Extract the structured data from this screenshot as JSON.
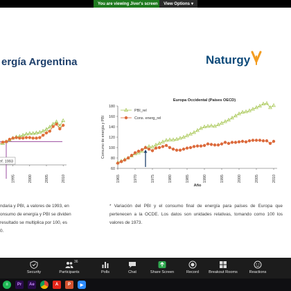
{
  "banner": {
    "message": "You are viewing Jiver's screen",
    "options_label": "View Options",
    "options_caret": "▾"
  },
  "slide": {
    "title": "ergía Argentina",
    "logo_text": "Naturgy",
    "left_chart": {
      "ref_label": "Ref. 1993",
      "x_ticks": [
        "1990",
        "1995",
        "2000",
        "2005",
        "2010"
      ]
    },
    "right_chart": {
      "title": "Europa Occidental (Países OECD)",
      "ylabel": "Consumo de energía y PBI",
      "xlabel": "Año",
      "legend": [
        "PBI_rel",
        "Cons. energ_rel"
      ]
    },
    "caption_left": [
      "ndaria y PBI, a valores de 1993, en",
      "onsumo de energía y PBI se dividen",
      "resultado se multiplica por 100, es",
      "0."
    ],
    "caption_right": "* Variación del PBI y el consumo final de energía para países de Europa que pertenecen a la OCDE. Los datos son unidades relativas, tomando como 100 los valores de 1973."
  },
  "chart_data": [
    {
      "type": "line",
      "title": "",
      "xlabel": "",
      "ylabel": "",
      "x": [
        1987,
        1988,
        1989,
        1990,
        1991,
        1992,
        1993,
        1994,
        1995,
        1996,
        1997,
        1998,
        1999,
        2000,
        2001,
        2002,
        2003,
        2004,
        2005,
        2006,
        2007,
        2008,
        2009,
        2010
      ],
      "xlim": [
        1987,
        2011
      ],
      "ylim": [
        60,
        160
      ],
      "series": [
        {
          "name": "",
          "color": "#99c24d",
          "marker": "triangle",
          "values": [
            88,
            90,
            92,
            93,
            95,
            97,
            100,
            103,
            106,
            108,
            109,
            111,
            113,
            114,
            114,
            115,
            116,
            118,
            121,
            125,
            130,
            134,
            127,
            136
          ]
        },
        {
          "name": "",
          "color": "#e0703a",
          "marker": "circle",
          "values": [
            90,
            92,
            94,
            96,
            97,
            99,
            100,
            104,
            106,
            107,
            106,
            106,
            107,
            107,
            106,
            106,
            107,
            111,
            115,
            118,
            126,
            130,
            122,
            128
          ]
        }
      ],
      "annotations": [
        {
          "text": "Ref. 1993",
          "x": 1993
        }
      ]
    },
    {
      "type": "line",
      "title": "Europa Occidental (Países OECD)",
      "xlabel": "Año",
      "ylabel": "Consumo de energía y PBI",
      "x": [
        1965,
        1966,
        1967,
        1968,
        1969,
        1970,
        1971,
        1972,
        1973,
        1974,
        1975,
        1976,
        1977,
        1978,
        1979,
        1980,
        1981,
        1982,
        1983,
        1984,
        1985,
        1986,
        1987,
        1988,
        1989,
        1990,
        1991,
        1992,
        1993,
        1994,
        1995,
        1996,
        1997,
        1998,
        1999,
        2000,
        2001,
        2002,
        2003,
        2004,
        2005,
        2006,
        2007,
        2008,
        2009,
        2010
      ],
      "xlim": [
        1965,
        2011
      ],
      "ylim": [
        60,
        180
      ],
      "xticks": [
        1965,
        1970,
        1975,
        1980,
        1985,
        1990,
        1995,
        2000,
        2005,
        2010
      ],
      "yticks": [
        60,
        80,
        100,
        120,
        140,
        160,
        180
      ],
      "grid": false,
      "legend_position": "top-left",
      "series": [
        {
          "name": "PBI_rel",
          "color": "#a9c857",
          "marker": "triangle",
          "values": [
            71,
            74,
            77,
            80,
            84,
            88,
            90,
            93,
            100,
            102,
            101,
            105,
            108,
            111,
            114,
            115,
            115,
            116,
            118,
            120,
            123,
            126,
            129,
            133,
            137,
            140,
            141,
            142,
            141,
            144,
            147,
            150,
            153,
            157,
            161,
            165,
            168,
            169,
            171,
            174,
            177,
            180,
            184,
            185,
            177,
            181
          ]
        },
        {
          "name": "Cons. energ_rel",
          "color": "#dc6a3c",
          "marker": "circle",
          "values": [
            70,
            73,
            76,
            80,
            85,
            90,
            93,
            96,
            100,
            97,
            94,
            99,
            100,
            102,
            104,
            100,
            97,
            95,
            95,
            97,
            99,
            100,
            102,
            103,
            103,
            104,
            107,
            106,
            105,
            105,
            107,
            110,
            108,
            110,
            110,
            111,
            112,
            111,
            113,
            114,
            114,
            114,
            113,
            113,
            108,
            112
          ]
        }
      ],
      "annotations": [
        {
          "type": "arrow",
          "x": 1973
        }
      ]
    }
  ],
  "toolbar": {
    "items": [
      {
        "label": "Security",
        "icon": "shield-icon"
      },
      {
        "label": "Participants",
        "icon": "participants-icon",
        "count": "36"
      },
      {
        "label": "Polls",
        "icon": "polls-icon"
      },
      {
        "label": "Chat",
        "icon": "chat-icon"
      },
      {
        "label": "Share Screen",
        "icon": "share-screen-icon"
      },
      {
        "label": "Record",
        "icon": "record-icon"
      },
      {
        "label": "Breakout Rooms",
        "icon": "breakout-rooms-icon"
      },
      {
        "label": "Reactions",
        "icon": "reactions-icon"
      }
    ],
    "share_color": "#2fa84f"
  },
  "taskbar": {
    "apps": [
      "spotify-icon",
      "premiere-icon",
      "after-effects-icon",
      "chrome-icon",
      "acrobat-icon",
      "powerpoint-icon",
      "zoom-icon"
    ]
  }
}
